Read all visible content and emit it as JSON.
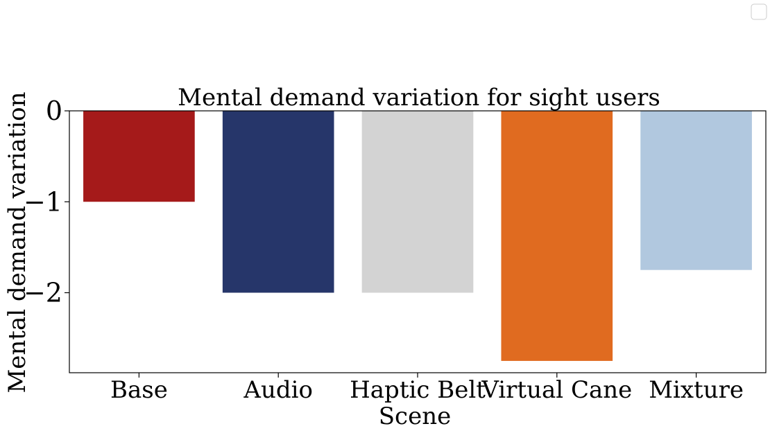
{
  "chart_data": {
    "type": "bar",
    "title": "Mental demand variation for sight users",
    "xlabel": "Scene",
    "ylabel": "Mental demand variation",
    "categories": [
      "Base",
      "Audio",
      "Haptic Belt",
      "Virtual Cane",
      "Mixture"
    ],
    "values": [
      -1,
      -2,
      -2,
      -2.75,
      -1.75
    ],
    "colors": [
      "#a51a1a",
      "#26366a",
      "#d3d3d3",
      "#e06b20",
      "#b1c8df"
    ],
    "ylim": [
      -2.88,
      0
    ],
    "yticks": [
      0,
      -1,
      -2
    ],
    "ytick_labels": [
      "0",
      "−1",
      "−2"
    ],
    "grid": false,
    "legend": {
      "placement": "top-right",
      "entries": []
    }
  }
}
